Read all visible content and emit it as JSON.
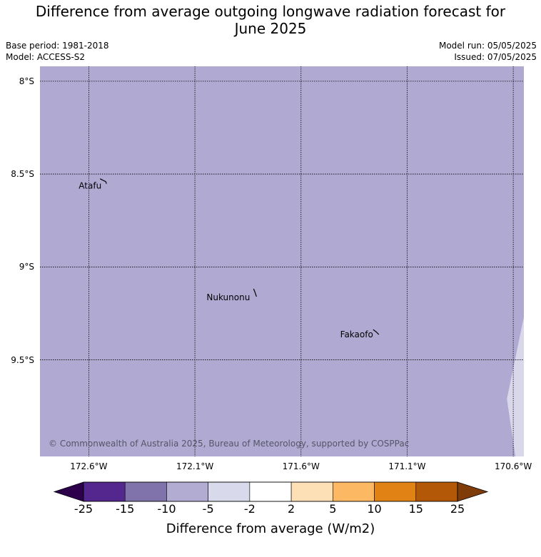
{
  "header": {
    "title": "Difference from average outgoing longwave radiation forecast for\nJune 2025",
    "base_period": "Base period: 1981-2018",
    "model": "Model: ACCESS-S2",
    "model_run": "Model run: 05/05/2025",
    "issued": "Issued: 07/05/2025"
  },
  "map": {
    "extent": {
      "lon_min": -172.83,
      "lon_max": -170.55,
      "lat_max": -7.92,
      "lat_min": -10.02
    },
    "background_color": "#b0aad3",
    "lat_gridlines": [
      {
        "value": -8.0,
        "label": "8°S"
      },
      {
        "value": -8.5,
        "label": "8.5°S"
      },
      {
        "value": -9.0,
        "label": "9°S"
      },
      {
        "value": -9.5,
        "label": "9.5°S"
      }
    ],
    "lon_gridlines": [
      {
        "value": -172.6,
        "label": "172.6°W"
      },
      {
        "value": -172.1,
        "label": "172.1°W"
      },
      {
        "value": -171.6,
        "label": "171.6°W"
      },
      {
        "value": -171.1,
        "label": "171.1°W"
      },
      {
        "value": -170.6,
        "label": "170.6°W"
      }
    ],
    "places": [
      {
        "name": "Atafu",
        "lon": -172.52,
        "lat": -8.56
      },
      {
        "name": "Nukunonu",
        "lon": -171.82,
        "lat": -9.16
      },
      {
        "name": "Fakaofo",
        "lon": -171.24,
        "lat": -9.36
      }
    ],
    "light_region": {
      "category": "-5 to -2",
      "color": "#d9d7ea",
      "polygon": [
        [
          -170.55,
          -9.27
        ],
        [
          -170.55,
          -10.02
        ],
        [
          -170.59,
          -10.02
        ],
        [
          -170.63,
          -9.71
        ],
        [
          -170.55,
          -9.27
        ]
      ]
    },
    "copyright": "© Commonwealth of Australia 2025, Bureau of Meteorology, supported by COSPPac"
  },
  "colorbar": {
    "title": "Difference from average (W/m2)",
    "ticks": [
      "-25",
      "-15",
      "-10",
      "-5",
      "-2",
      "2",
      "5",
      "10",
      "15",
      "25"
    ],
    "colors": [
      "#54278f",
      "#8073ac",
      "#b2abd2",
      "#d8daeb",
      "#ffffff",
      "#fee0b6",
      "#fdb863",
      "#e08214",
      "#b35806"
    ],
    "under_color": "#2d004b",
    "over_color": "#7f3b08"
  }
}
